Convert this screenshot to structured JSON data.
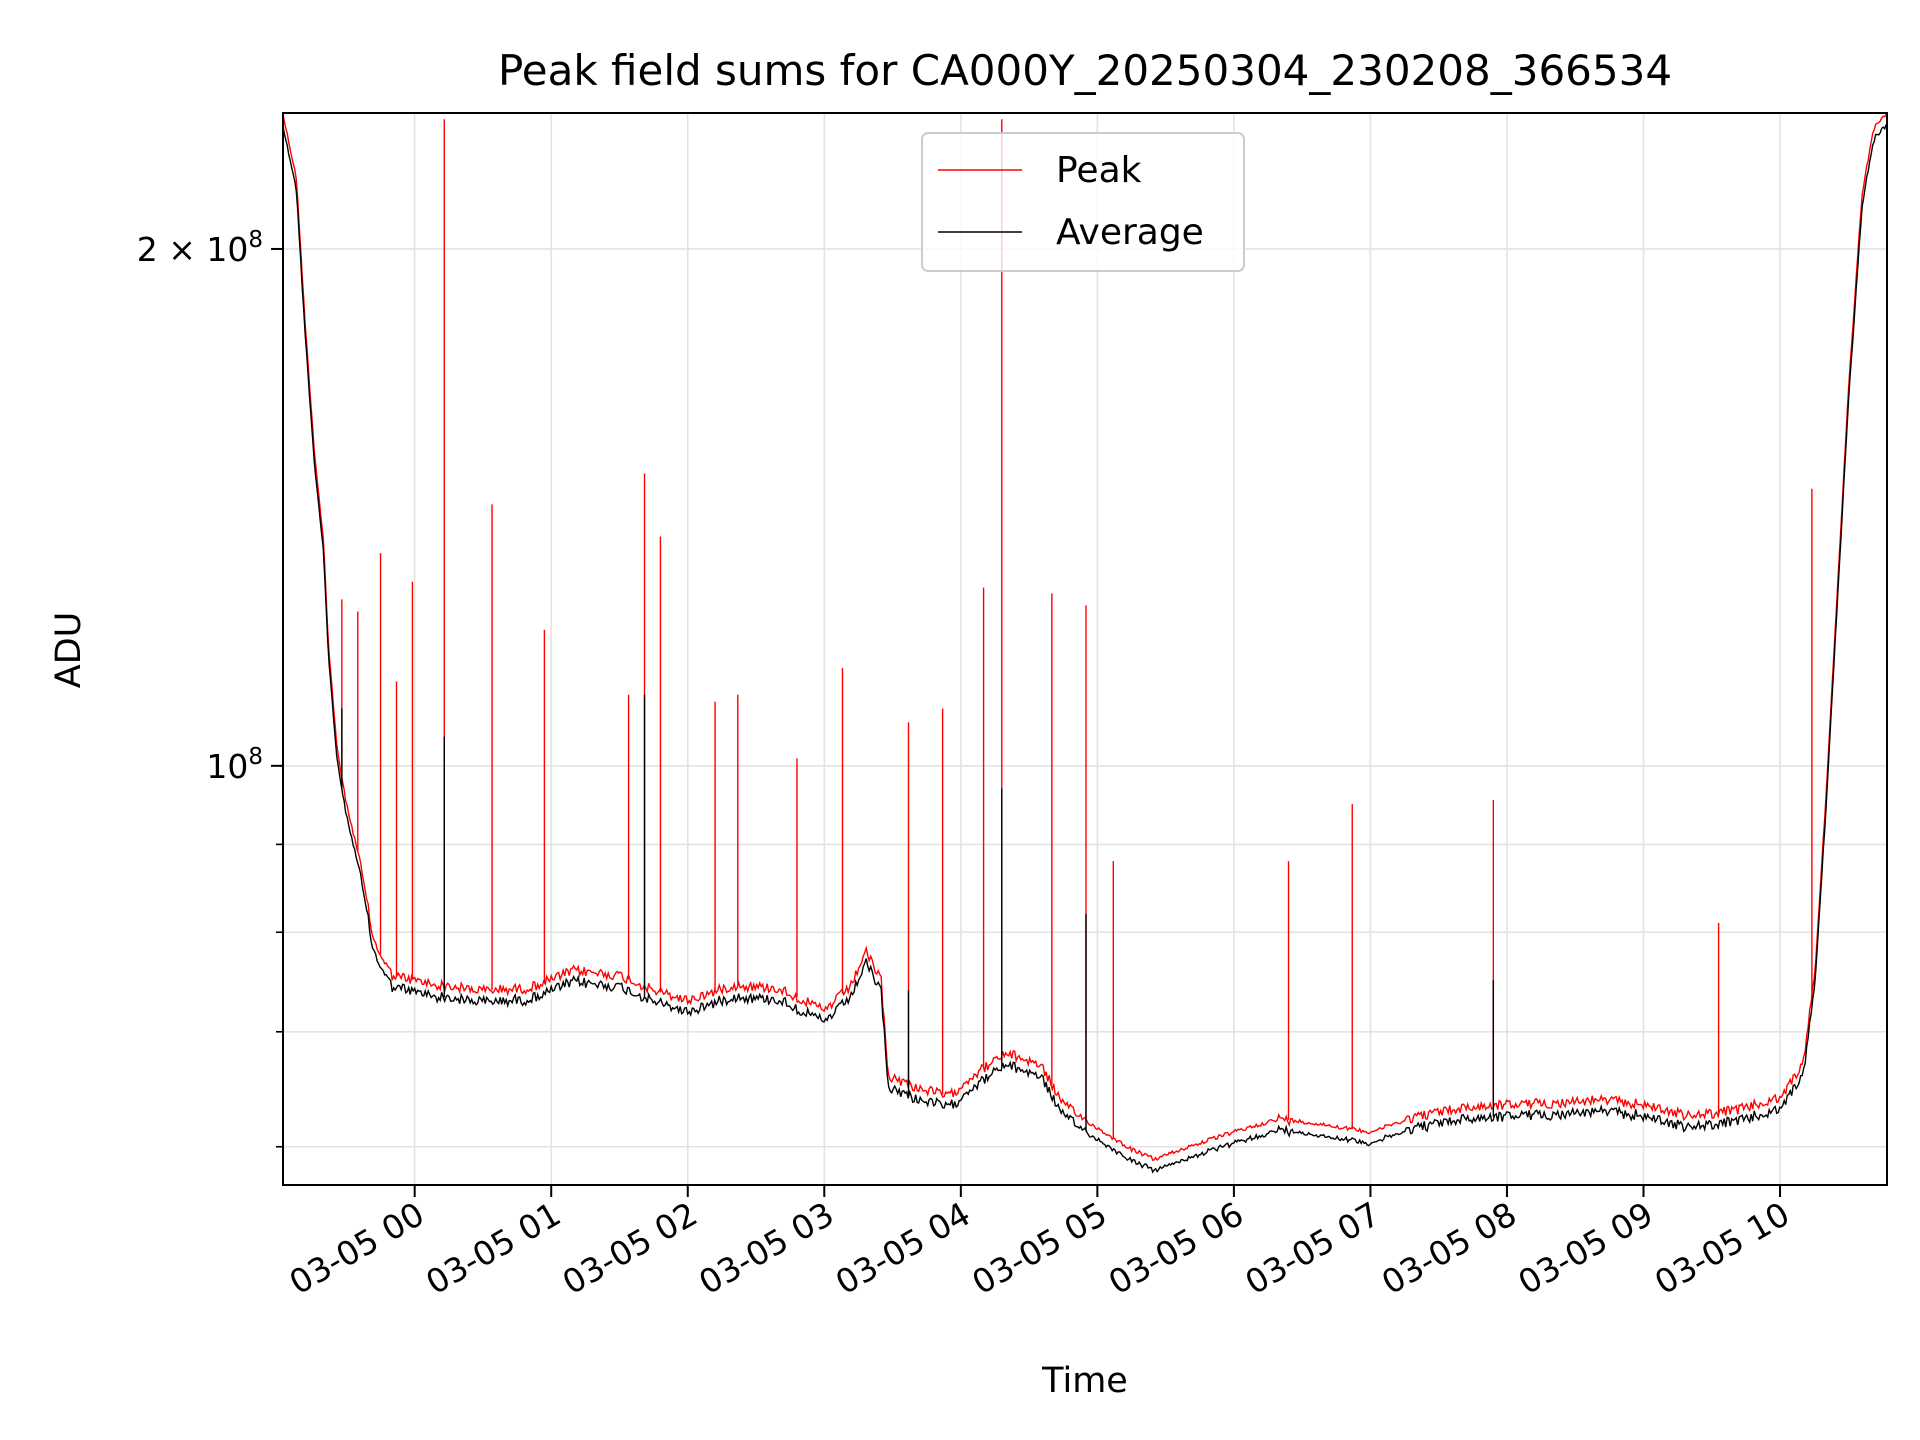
{
  "chart_data": {
    "type": "line",
    "title": "Peak field sums for CA000Y_20250304_230208_366534",
    "xlabel": "Time",
    "ylabel": "ADU",
    "yscale": "log",
    "grid": true,
    "legend_position": "top-center",
    "xlim": [
      "2025-03-04 23:02:08",
      "2025-03-05 10:47:00"
    ],
    "ylim": [
      57000000,
      240000000
    ],
    "x_ticks": [
      {
        "t": "2025-03-05 00:00",
        "label": "03-05 00"
      },
      {
        "t": "2025-03-05 01:00",
        "label": "03-05 01"
      },
      {
        "t": "2025-03-05 02:00",
        "label": "03-05 02"
      },
      {
        "t": "2025-03-05 03:00",
        "label": "03-05 03"
      },
      {
        "t": "2025-03-05 04:00",
        "label": "03-05 04"
      },
      {
        "t": "2025-03-05 05:00",
        "label": "03-05 05"
      },
      {
        "t": "2025-03-05 06:00",
        "label": "03-05 06"
      },
      {
        "t": "2025-03-05 07:00",
        "label": "03-05 07"
      },
      {
        "t": "2025-03-05 08:00",
        "label": "03-05 08"
      },
      {
        "t": "2025-03-05 09:00",
        "label": "03-05 09"
      },
      {
        "t": "2025-03-05 10:00",
        "label": "03-05 10"
      }
    ],
    "y_major_ticks": [
      {
        "value": 100000000,
        "base": "10",
        "exp": "8",
        "coef": ""
      },
      {
        "value": 200000000,
        "base": "10",
        "exp": "8",
        "coef": "2"
      }
    ],
    "y_minor_ticks": [
      60000000,
      70000000,
      80000000,
      90000000
    ],
    "series": [
      {
        "name": "Peak",
        "color": "#ff0000",
        "baseline": [
          [
            "2025-03-04 23:02",
            240000000
          ],
          [
            "2025-03-04 23:08",
            220000000
          ],
          [
            "2025-03-04 23:12",
            180000000
          ],
          [
            "2025-03-04 23:16",
            152000000
          ],
          [
            "2025-03-04 23:20",
            135000000
          ],
          [
            "2025-03-04 23:22",
            118000000
          ],
          [
            "2025-03-04 23:26",
            102000000
          ],
          [
            "2025-03-04 23:30",
            95000000
          ],
          [
            "2025-03-04 23:36",
            88000000
          ],
          [
            "2025-03-04 23:42",
            79000000
          ],
          [
            "2025-03-04 23:50",
            75500000
          ],
          [
            "2025-03-05 00:10",
            74500000
          ],
          [
            "2025-03-05 00:30",
            74000000
          ],
          [
            "2025-03-05 00:50",
            74200000
          ],
          [
            "2025-03-05 01:10",
            76000000
          ],
          [
            "2025-03-05 01:30",
            75500000
          ],
          [
            "2025-03-05 01:45",
            74000000
          ],
          [
            "2025-03-05 02:00",
            73000000
          ],
          [
            "2025-03-05 02:20",
            74500000
          ],
          [
            "2025-03-05 02:40",
            74200000
          ],
          [
            "2025-03-05 03:00",
            72000000
          ],
          [
            "2025-03-05 03:12",
            74500000
          ],
          [
            "2025-03-05 03:18",
            78000000
          ],
          [
            "2025-03-05 03:25",
            75000000
          ],
          [
            "2025-03-05 03:28",
            66000000
          ],
          [
            "2025-03-05 03:40",
            65000000
          ],
          [
            "2025-03-05 03:55",
            64200000
          ],
          [
            "2025-03-05 04:05",
            66000000
          ],
          [
            "2025-03-05 04:20",
            68000000
          ],
          [
            "2025-03-05 04:35",
            67000000
          ],
          [
            "2025-03-05 04:45",
            63500000
          ],
          [
            "2025-03-05 05:00",
            61500000
          ],
          [
            "2025-03-05 05:15",
            59800000
          ],
          [
            "2025-03-05 05:25",
            59000000
          ],
          [
            "2025-03-05 05:40",
            60000000
          ],
          [
            "2025-03-05 06:00",
            61200000
          ],
          [
            "2025-03-05 06:20",
            62300000
          ],
          [
            "2025-03-05 06:40",
            61800000
          ],
          [
            "2025-03-05 07:00",
            61200000
          ],
          [
            "2025-03-05 07:20",
            62500000
          ],
          [
            "2025-03-05 07:40",
            63200000
          ],
          [
            "2025-03-05 08:00",
            63500000
          ],
          [
            "2025-03-05 08:20",
            63600000
          ],
          [
            "2025-03-05 08:40",
            63900000
          ],
          [
            "2025-03-05 09:00",
            63500000
          ],
          [
            "2025-03-05 09:20",
            62500000
          ],
          [
            "2025-03-05 09:40",
            63000000
          ],
          [
            "2025-03-05 10:00",
            64000000
          ],
          [
            "2025-03-05 10:10",
            67000000
          ],
          [
            "2025-03-05 10:15",
            75000000
          ],
          [
            "2025-03-05 10:20",
            95000000
          ],
          [
            "2025-03-05 10:25",
            125000000
          ],
          [
            "2025-03-05 10:30",
            165000000
          ],
          [
            "2025-03-05 10:36",
            215000000
          ],
          [
            "2025-03-05 10:41",
            235000000
          ],
          [
            "2025-03-05 10:47",
            240000000
          ]
        ],
        "spikes": [
          [
            "2025-03-04 23:28",
            125000000
          ],
          [
            "2025-03-04 23:35",
            123000000
          ],
          [
            "2025-03-04 23:45",
            133000000
          ],
          [
            "2025-03-04 23:52",
            112000000
          ],
          [
            "2025-03-04 23:59",
            128000000
          ],
          [
            "2025-03-05 00:13",
            238000000
          ],
          [
            "2025-03-05 00:34",
            142000000
          ],
          [
            "2025-03-05 00:57",
            120000000
          ],
          [
            "2025-03-05 01:34",
            110000000
          ],
          [
            "2025-03-05 01:41",
            148000000
          ],
          [
            "2025-03-05 01:48",
            136000000
          ],
          [
            "2025-03-05 02:12",
            109000000
          ],
          [
            "2025-03-05 02:22",
            110000000
          ],
          [
            "2025-03-05 02:48",
            101000000
          ],
          [
            "2025-03-05 03:08",
            114000000
          ],
          [
            "2025-03-05 03:37",
            106000000
          ],
          [
            "2025-03-05 03:52",
            108000000
          ],
          [
            "2025-03-05 04:10",
            127000000
          ],
          [
            "2025-03-05 04:18",
            238000000
          ],
          [
            "2025-03-05 04:40",
            126000000
          ],
          [
            "2025-03-05 04:55",
            124000000
          ],
          [
            "2025-03-05 05:07",
            88000000
          ],
          [
            "2025-03-05 06:24",
            88000000
          ],
          [
            "2025-03-05 06:52",
            95000000
          ],
          [
            "2025-03-05 07:54",
            95500000
          ],
          [
            "2025-03-05 09:33",
            81000000
          ],
          [
            "2025-03-05 10:14",
            145000000
          ]
        ]
      },
      {
        "name": "Average",
        "color": "#000000",
        "offset_ratio": 0.985,
        "spikes": [
          [
            "2025-03-04 23:28",
            108000000
          ],
          [
            "2025-03-05 00:13",
            104000000
          ],
          [
            "2025-03-05 01:41",
            110000000
          ],
          [
            "2025-03-05 03:37",
            74000000
          ],
          [
            "2025-03-05 04:18",
            97000000
          ],
          [
            "2025-03-05 04:55",
            82000000
          ],
          [
            "2025-03-05 07:54",
            75000000
          ]
        ]
      }
    ]
  }
}
